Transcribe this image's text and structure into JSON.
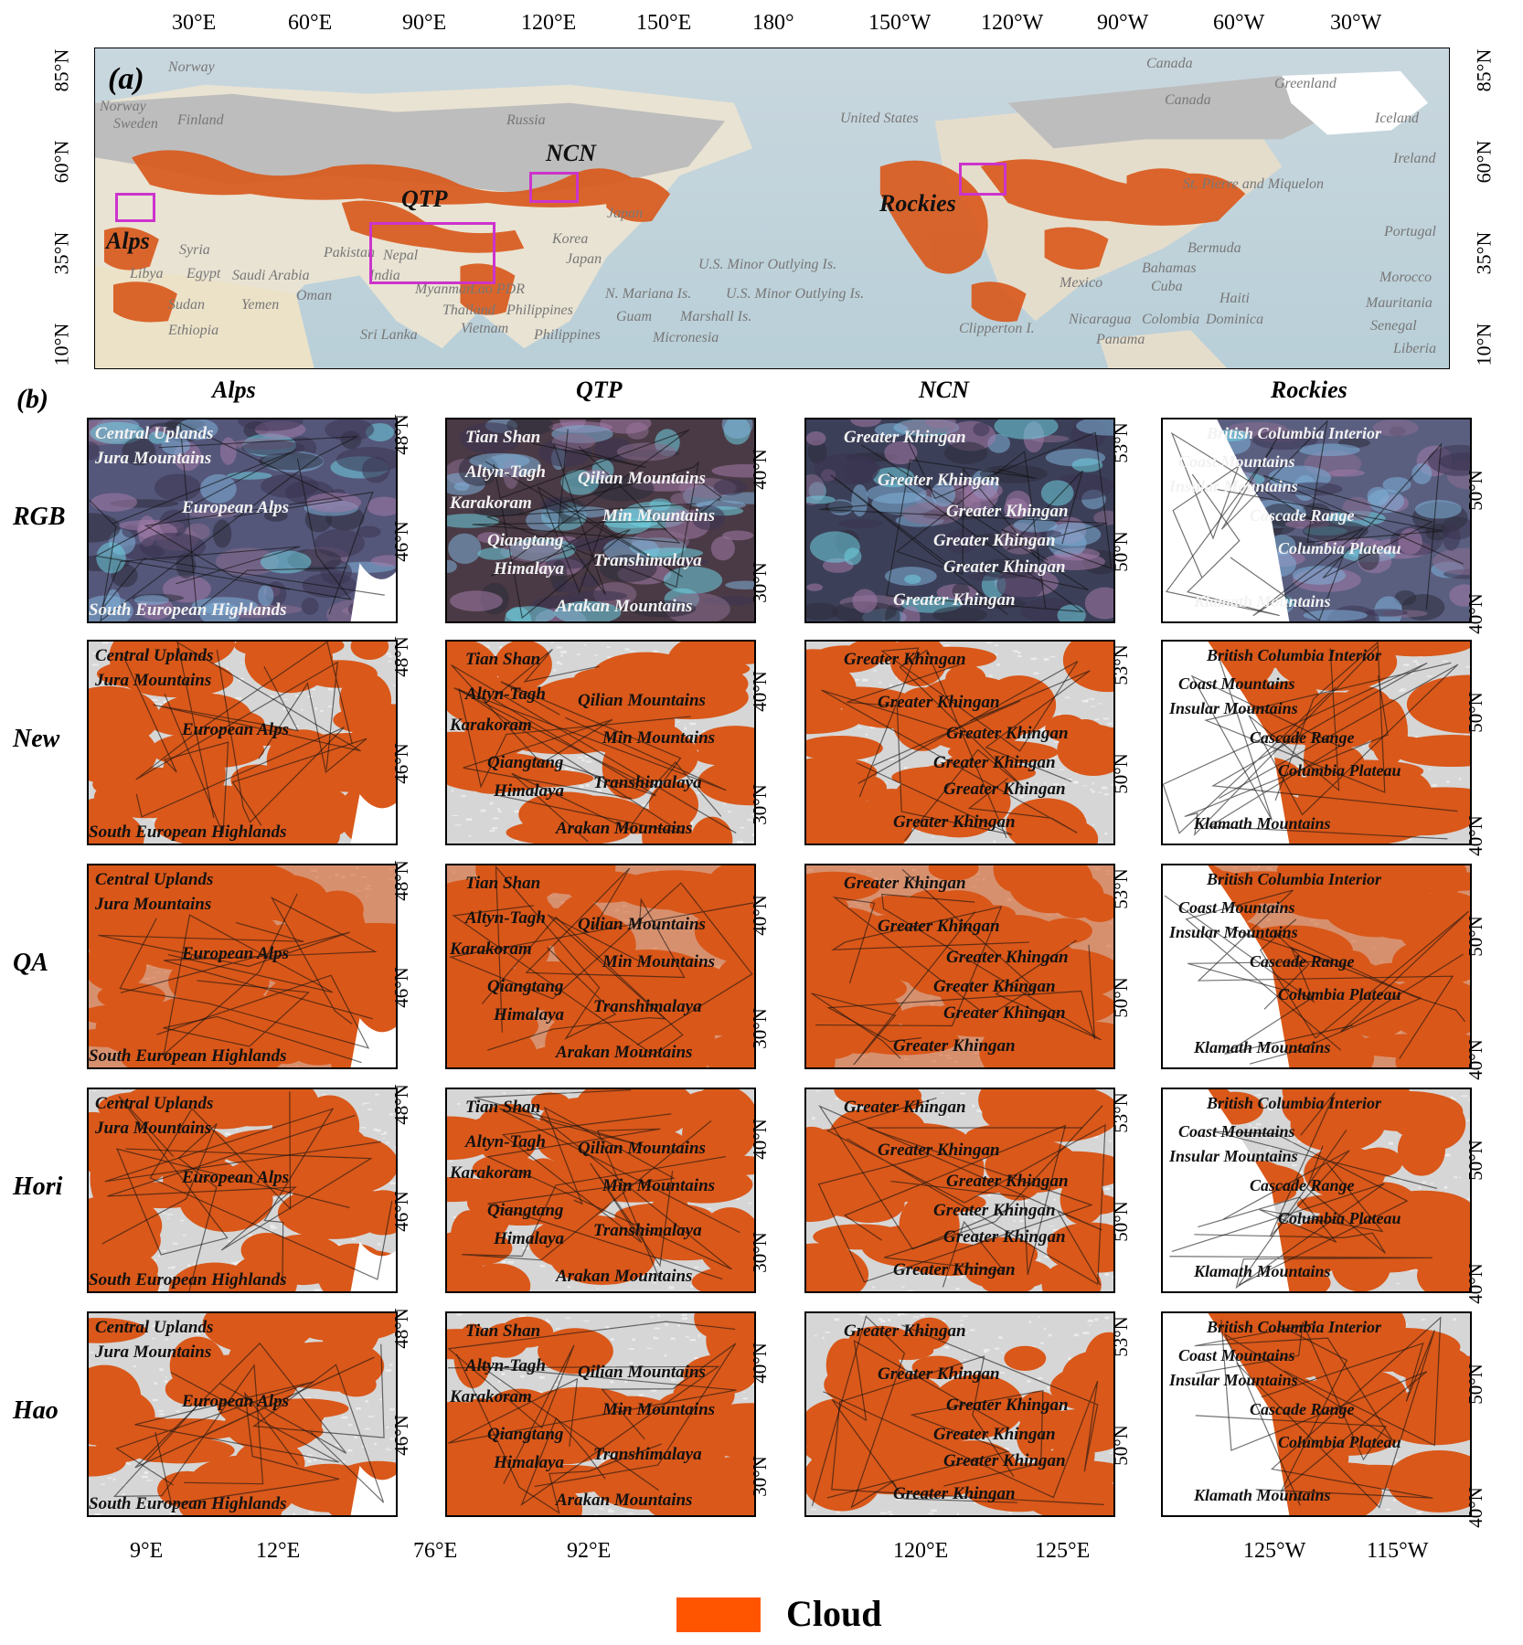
{
  "panel_a": {
    "label": "(a)",
    "top_ticks": [
      "30°E",
      "60°E",
      "90°E",
      "120°E",
      "150°E",
      "180°",
      "150°W",
      "120°W",
      "90°W",
      "60°W",
      "30°W"
    ],
    "lat_ticks": [
      "85°N",
      "60°N",
      "35°N",
      "10°N"
    ],
    "regions": [
      "Alps",
      "QTP",
      "NCN",
      "Rockies"
    ],
    "place_names": [
      "Norway",
      "Norway",
      "Sweden",
      "Finland",
      "Russia",
      "United States",
      "Canada",
      "Canada",
      "Greenland",
      "Iceland",
      "Ireland",
      "Portugal",
      "Morocco",
      "Mauritania",
      "Senegal",
      "Liberia",
      "Bermuda",
      "Bahamas",
      "Cuba",
      "Haiti",
      "Mexico",
      "Nicaragua",
      "Colombia",
      "Dominica",
      "Panama",
      "Clipperton I.",
      "Japan",
      "Japan",
      "Korea",
      "Nepal",
      "India",
      "Pakistan",
      "Oman",
      "Saudi Arabia",
      "Egypt",
      "Libya",
      "Sudan",
      "Yemen",
      "Ethiopia",
      "Syria",
      "Sri Lanka",
      "Myanmar",
      "Lao PDR",
      "Thailand",
      "Philippines",
      "Philippines",
      "Vietnam",
      "Guam",
      "Marshall Is.",
      "Micronesia",
      "N. Mariana Is.",
      "U.S. Minor Outlying Is.",
      "U.S. Minor Outlying Is.",
      "St. Pierre and Miquelon"
    ]
  },
  "panel_b": {
    "label": "(b)",
    "columns": [
      "Alps",
      "QTP",
      "NCN",
      "Rockies"
    ],
    "rows": [
      "RGB",
      "New",
      "QA",
      "Hori",
      "Hao"
    ],
    "alps_places": [
      "Central Uplands",
      "Jura Mountains",
      "European Alps",
      "South European Highlands"
    ],
    "qtp_places": [
      "Tian Shan",
      "Altyn-Tagh",
      "Qilian Mountains",
      "Karakoram",
      "Min Mountains",
      "Qiangtang",
      "Transhimalaya",
      "Himalaya",
      "Arakan Mountains"
    ],
    "ncn_places": [
      "Greater Khingan",
      "Greater Khingan",
      "Greater Khingan",
      "Greater Khingan",
      "Greater Khingan",
      "Greater Khingan"
    ],
    "rockies_places": [
      "British Columbia Interior",
      "Coast Mountains",
      "Insular Mountains",
      "Cascade Range",
      "Columbia Plateau",
      "Klamath Mountains"
    ],
    "alps_lat": [
      "48°N",
      "46°N"
    ],
    "qtp_lat": [
      "40°N",
      "30°N"
    ],
    "ncn_lat": [
      "53°N",
      "50°N"
    ],
    "rockies_lat": [
      "50°N",
      "40°N"
    ],
    "alps_lon": [
      "9°E",
      "12°E"
    ],
    "qtp_lon": [
      "76°E",
      "92°E"
    ],
    "ncn_lon": [
      "120°E",
      "125°E"
    ],
    "rockies_lon": [
      "125°W",
      "115°W"
    ]
  },
  "legend": {
    "label": "Cloud",
    "color": "#ff5500"
  },
  "colors": {
    "cloud": "#d9581a",
    "clear": "#d6d6d6",
    "box": "#cc33cc"
  }
}
